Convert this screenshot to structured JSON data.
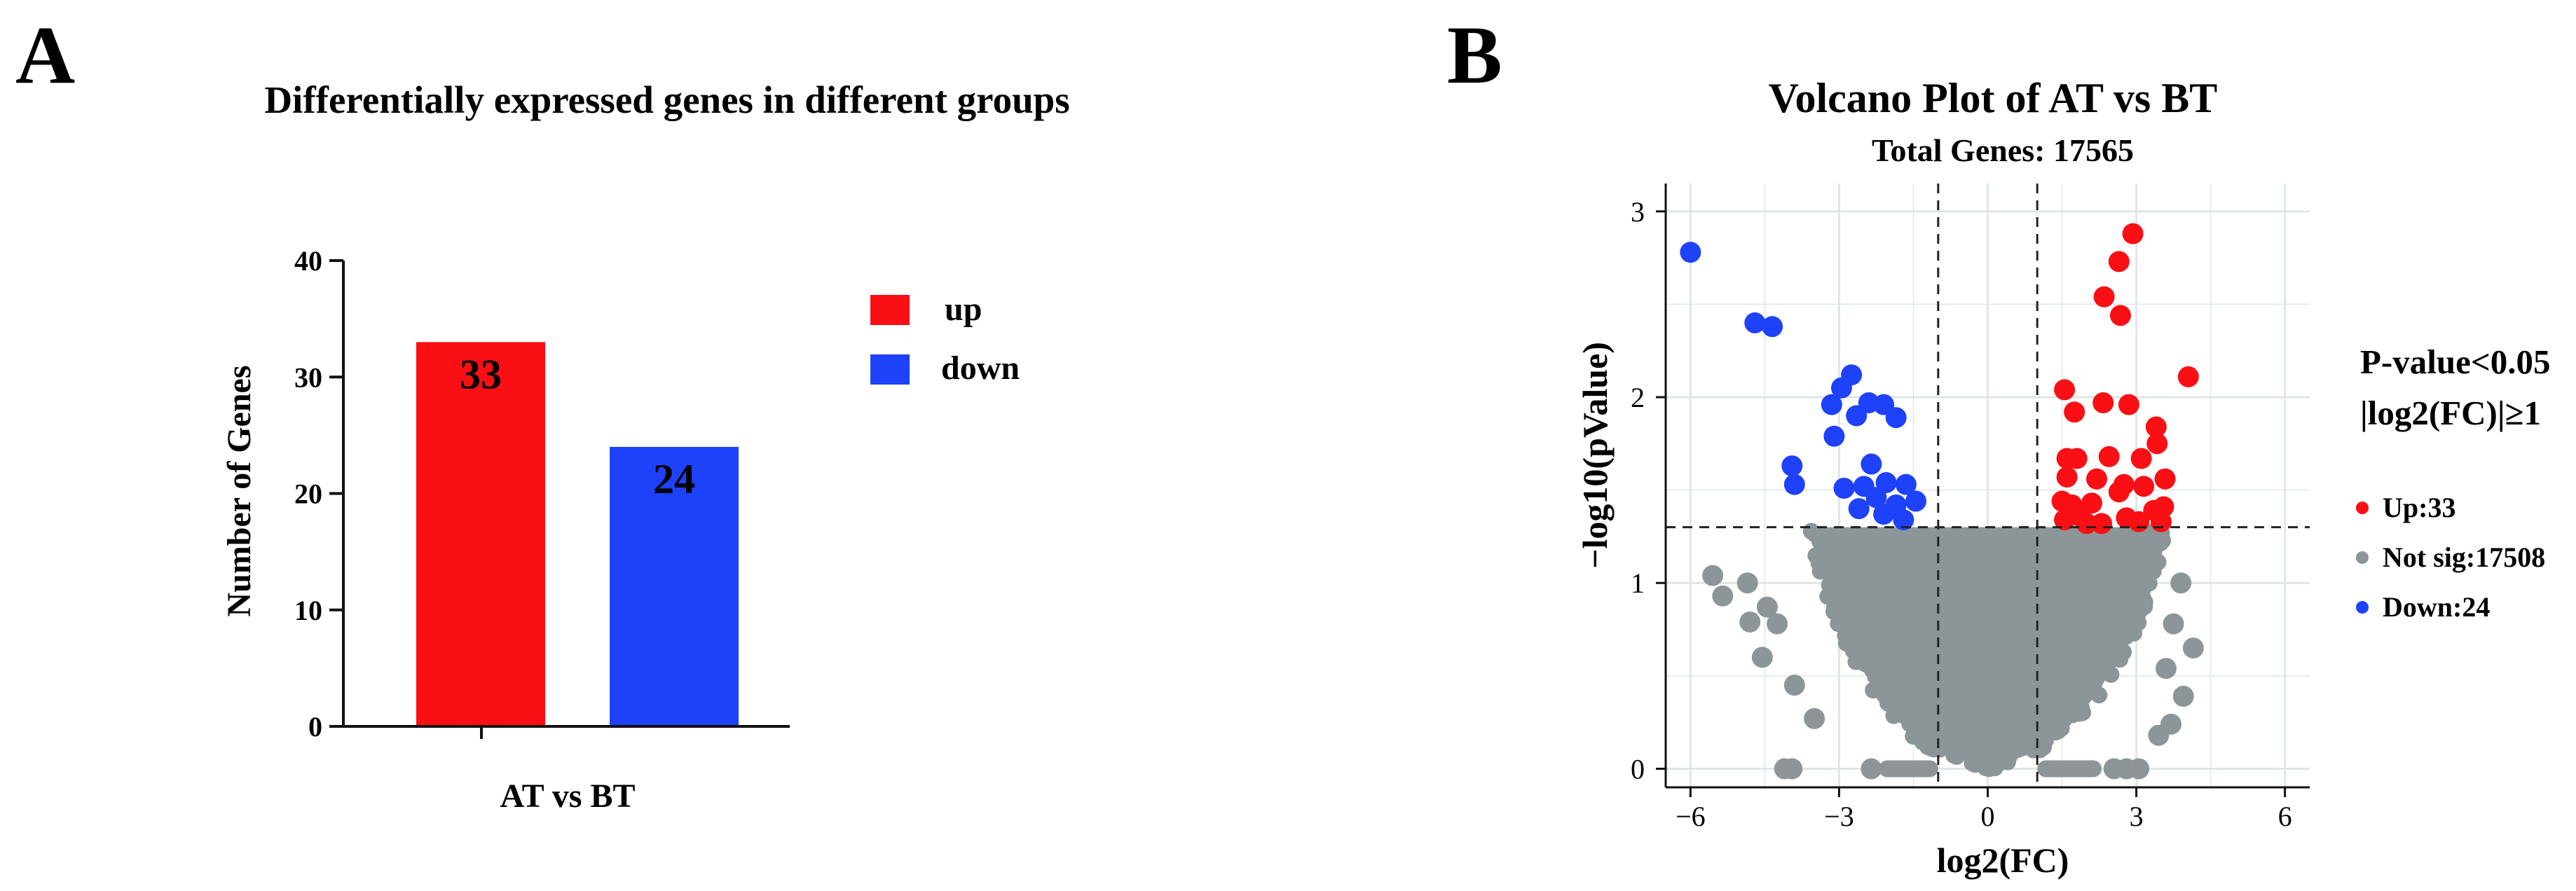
{
  "colors": {
    "up": "#fa0f14",
    "down": "#1e41fa",
    "notsig": "#8c9698",
    "grid": "#dfe6e8",
    "text": "#111111"
  },
  "panels": {
    "a_label": "A",
    "b_label": "B"
  },
  "chart_data": [
    {
      "type": "bar",
      "panel": "A",
      "title": "Differentially expressed genes in different groups",
      "xlabel": "AT vs BT",
      "ylabel": "Number of Genes",
      "ylim": [
        0,
        40
      ],
      "yticks": [
        0,
        10,
        20,
        30,
        40
      ],
      "series": [
        {
          "name": "up",
          "value": 33,
          "color": "#fa0f14"
        },
        {
          "name": "down",
          "value": 24,
          "color": "#1e41fa"
        }
      ],
      "legend": [
        "up",
        "down"
      ],
      "legend_position": "right"
    },
    {
      "type": "scatter",
      "panel": "B",
      "title": "Volcano Plot of AT vs BT",
      "subtitle": "Total Genes: 17565",
      "xlabel": "log2(FC)",
      "ylabel": "−log10(pValue)",
      "xlim": [
        -6.5,
        6.5
      ],
      "ylim": [
        -0.1,
        3.15
      ],
      "xticks": [
        -6,
        -3,
        0,
        3,
        6
      ],
      "yticks": [
        0,
        1,
        2,
        3
      ],
      "grid": true,
      "thresholds": {
        "x": [
          -1,
          1
        ],
        "y": 1.3
      },
      "criteria": [
        "P-value<0.05",
        "|log2(FC)|≥1"
      ],
      "legend": [
        {
          "name": "Up:33",
          "color": "#fa0f14"
        },
        {
          "name": "Not sig:17508",
          "color": "#8c9698"
        },
        {
          "name": "Down:24",
          "color": "#1e41fa"
        }
      ],
      "up_points": [
        [
          2.93,
          2.88
        ],
        [
          2.65,
          2.73
        ],
        [
          2.68,
          2.44
        ],
        [
          2.35,
          2.54
        ],
        [
          4.05,
          2.11
        ],
        [
          1.55,
          2.04
        ],
        [
          1.75,
          1.92
        ],
        [
          2.33,
          1.97
        ],
        [
          2.85,
          1.96
        ],
        [
          3.4,
          1.84
        ],
        [
          3.42,
          1.75
        ],
        [
          1.6,
          1.67
        ],
        [
          1.8,
          1.67
        ],
        [
          2.45,
          1.68
        ],
        [
          3.1,
          1.67
        ],
        [
          1.6,
          1.57
        ],
        [
          2.2,
          1.56
        ],
        [
          2.75,
          1.53
        ],
        [
          3.58,
          1.56
        ],
        [
          3.15,
          1.52
        ],
        [
          2.65,
          1.49
        ],
        [
          1.5,
          1.44
        ],
        [
          1.7,
          1.42
        ],
        [
          2.1,
          1.43
        ],
        [
          3.55,
          1.41
        ],
        [
          3.35,
          1.39
        ],
        [
          2.8,
          1.35
        ],
        [
          1.55,
          1.34
        ],
        [
          2.0,
          1.32
        ],
        [
          2.3,
          1.32
        ],
        [
          3.05,
          1.33
        ],
        [
          3.5,
          1.33
        ],
        [
          1.85,
          1.36
        ]
      ],
      "down_points": [
        [
          -6.0,
          2.78
        ],
        [
          -4.7,
          2.4
        ],
        [
          -4.35,
          2.38
        ],
        [
          -2.75,
          2.12
        ],
        [
          -2.95,
          2.05
        ],
        [
          -3.15,
          1.96
        ],
        [
          -2.4,
          1.97
        ],
        [
          -2.1,
          1.96
        ],
        [
          -1.85,
          1.89
        ],
        [
          -3.1,
          1.79
        ],
        [
          -2.65,
          1.9
        ],
        [
          -3.95,
          1.63
        ],
        [
          -3.9,
          1.53
        ],
        [
          -2.35,
          1.64
        ],
        [
          -2.05,
          1.54
        ],
        [
          -2.5,
          1.52
        ],
        [
          -2.9,
          1.51
        ],
        [
          -1.65,
          1.53
        ],
        [
          -2.25,
          1.46
        ],
        [
          -1.85,
          1.42
        ],
        [
          -1.45,
          1.44
        ],
        [
          -2.6,
          1.4
        ],
        [
          -2.1,
          1.37
        ],
        [
          -1.7,
          1.34
        ]
      ],
      "notsig_outliers": [
        [
          -5.55,
          1.04
        ],
        [
          -5.35,
          0.93
        ],
        [
          -4.85,
          1.0
        ],
        [
          -4.45,
          0.87
        ],
        [
          -4.8,
          0.79
        ],
        [
          -4.25,
          0.78
        ],
        [
          -4.55,
          0.6
        ],
        [
          -3.9,
          0.45
        ],
        [
          3.9,
          1.0
        ],
        [
          3.75,
          0.78
        ],
        [
          4.15,
          0.65
        ],
        [
          3.6,
          0.54
        ],
        [
          3.95,
          0.39
        ],
        [
          3.7,
          0.24
        ],
        [
          -3.95,
          0.0
        ],
        [
          -4.1,
          0.0
        ],
        [
          -2.35,
          0.0
        ],
        [
          2.55,
          0.0
        ],
        [
          2.8,
          0.0
        ],
        [
          3.05,
          0.0
        ],
        [
          -3.5,
          0.27
        ],
        [
          3.45,
          0.18
        ]
      ],
      "notsig_shape": {
        "half_width_at_y": [
          [
            0.0,
            0.05
          ],
          [
            0.1,
            1.05
          ],
          [
            0.2,
            1.55
          ],
          [
            0.4,
            2.2
          ],
          [
            0.6,
            2.65
          ],
          [
            0.8,
            3.0
          ],
          [
            1.0,
            3.25
          ],
          [
            1.2,
            3.45
          ],
          [
            1.3,
            3.5
          ]
        ],
        "bottom_band_left": [
          -2.2,
          -1.0
        ],
        "bottom_band_right": [
          1.0,
          2.3
        ]
      }
    }
  ]
}
